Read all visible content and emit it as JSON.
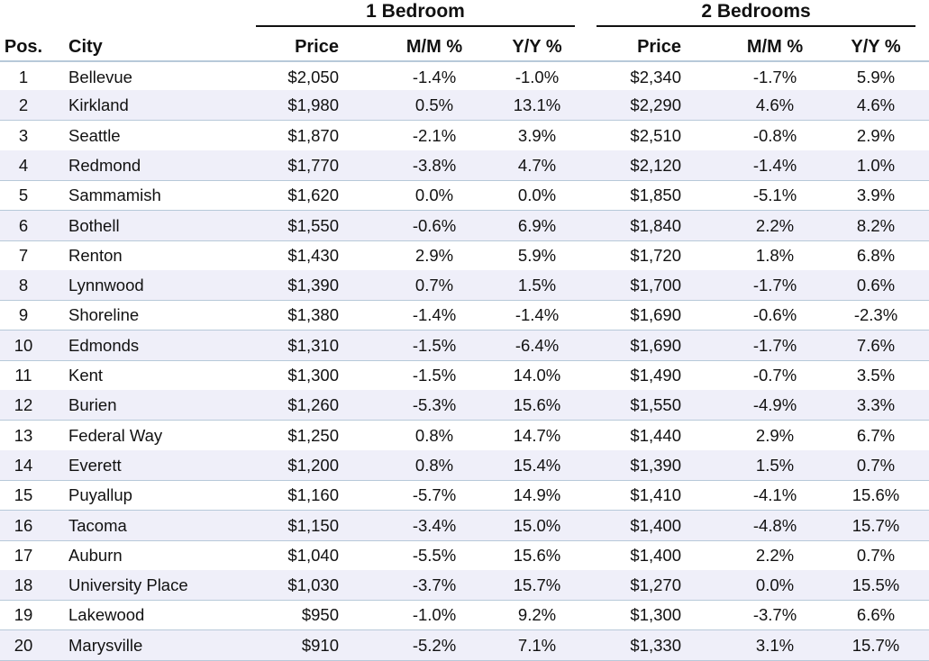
{
  "chart_data": {
    "type": "table",
    "groups": [
      "1 Bedroom",
      "2 Bedrooms"
    ],
    "columns": [
      "Pos.",
      "City",
      "Price",
      "M/M %",
      "Y/Y %",
      "Price",
      "M/M %",
      "Y/Y %"
    ],
    "rows": [
      [
        "1",
        "Bellevue",
        "$2,050",
        "-1.4%",
        "-1.0%",
        "$2,340",
        "-1.7%",
        "5.9%"
      ],
      [
        "2",
        "Kirkland",
        "$1,980",
        "0.5%",
        "13.1%",
        "$2,290",
        "4.6%",
        "4.6%"
      ],
      [
        "3",
        "Seattle",
        "$1,870",
        "-2.1%",
        "3.9%",
        "$2,510",
        "-0.8%",
        "2.9%"
      ],
      [
        "4",
        "Redmond",
        "$1,770",
        "-3.8%",
        "4.7%",
        "$2,120",
        "-1.4%",
        "1.0%"
      ],
      [
        "5",
        "Sammamish",
        "$1,620",
        "0.0%",
        "0.0%",
        "$1,850",
        "-5.1%",
        "3.9%"
      ],
      [
        "6",
        "Bothell",
        "$1,550",
        "-0.6%",
        "6.9%",
        "$1,840",
        "2.2%",
        "8.2%"
      ],
      [
        "7",
        "Renton",
        "$1,430",
        "2.9%",
        "5.9%",
        "$1,720",
        "1.8%",
        "6.8%"
      ],
      [
        "8",
        "Lynnwood",
        "$1,390",
        "0.7%",
        "1.5%",
        "$1,700",
        "-1.7%",
        "0.6%"
      ],
      [
        "9",
        "Shoreline",
        "$1,380",
        "-1.4%",
        "-1.4%",
        "$1,690",
        "-0.6%",
        "-2.3%"
      ],
      [
        "10",
        "Edmonds",
        "$1,310",
        "-1.5%",
        "-6.4%",
        "$1,690",
        "-1.7%",
        "7.6%"
      ],
      [
        "11",
        "Kent",
        "$1,300",
        "-1.5%",
        "14.0%",
        "$1,490",
        "-0.7%",
        "3.5%"
      ],
      [
        "12",
        "Burien",
        "$1,260",
        "-5.3%",
        "15.6%",
        "$1,550",
        "-4.9%",
        "3.3%"
      ],
      [
        "13",
        "Federal Way",
        "$1,250",
        "0.8%",
        "14.7%",
        "$1,440",
        "2.9%",
        "6.7%"
      ],
      [
        "14",
        "Everett",
        "$1,200",
        "0.8%",
        "15.4%",
        "$1,390",
        "1.5%",
        "0.7%"
      ],
      [
        "15",
        "Puyallup",
        "$1,160",
        "-5.7%",
        "14.9%",
        "$1,410",
        "-4.1%",
        "15.6%"
      ],
      [
        "16",
        "Tacoma",
        "$1,150",
        "-3.4%",
        "15.0%",
        "$1,400",
        "-4.8%",
        "15.7%"
      ],
      [
        "17",
        "Auburn",
        "$1,040",
        "-5.5%",
        "15.6%",
        "$1,400",
        "2.2%",
        "0.7%"
      ],
      [
        "18",
        "University Place",
        "$1,030",
        "-3.7%",
        "15.7%",
        "$1,270",
        "0.0%",
        "15.5%"
      ],
      [
        "19",
        "Lakewood",
        "$950",
        "-1.0%",
        "9.2%",
        "$1,300",
        "-3.7%",
        "6.6%"
      ],
      [
        "20",
        "Marysville",
        "$910",
        "-5.2%",
        "7.1%",
        "$1,330",
        "3.1%",
        "15.7%"
      ]
    ],
    "colors": {
      "stripe": "#efeff9",
      "rule": "#b7c9d9"
    }
  }
}
